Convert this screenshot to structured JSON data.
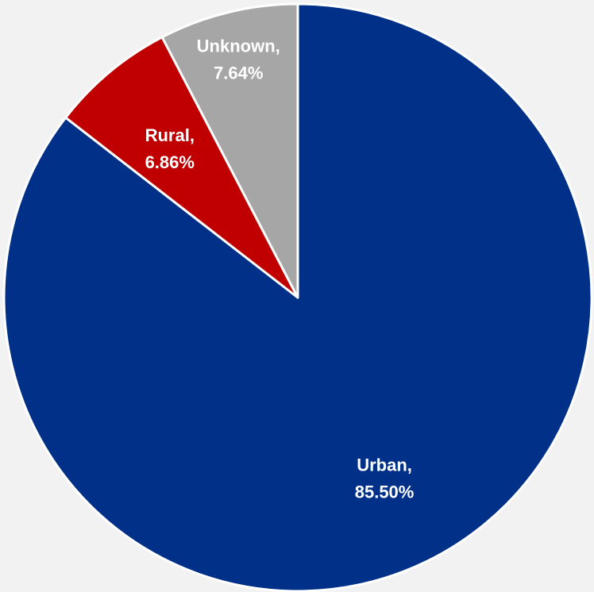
{
  "chart_data": {
    "type": "pie",
    "title": "",
    "categories": [
      "Urban",
      "Rural",
      "Unknown"
    ],
    "values": [
      85.5,
      6.86,
      7.64
    ],
    "labels": [
      {
        "name": "Urban,",
        "value": "85.50%"
      },
      {
        "name": "Rural,",
        "value": "6.86%"
      },
      {
        "name": "Unknown,",
        "value": "7.64%"
      }
    ],
    "colors": [
      "#003087",
      "#c00000",
      "#a6a6a6"
    ],
    "slice_border_color": "#ffffff",
    "background": "#f2f2f2",
    "start_angle": "12 o'clock",
    "direction": "clockwise",
    "legend": "none"
  }
}
